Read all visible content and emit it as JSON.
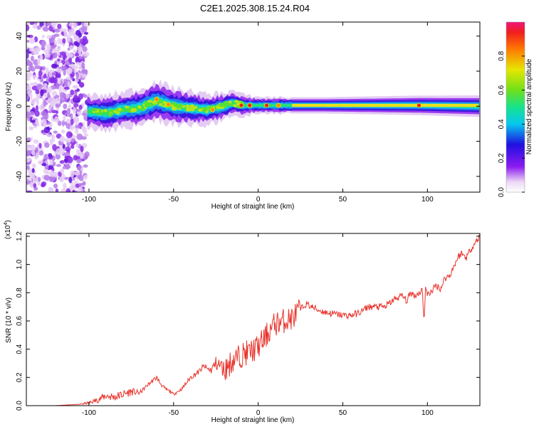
{
  "page": {
    "title": "C2E1.2025.308.15.24.R04"
  },
  "chart_data": [
    {
      "type": "heatmap",
      "xlabel": "Height of straight line (km)",
      "ylabel": "Frequency (Hz)",
      "xlim": [
        -137,
        131
      ],
      "ylim": [
        -49,
        48
      ],
      "xticks": [
        -100,
        -50,
        0,
        50,
        100
      ],
      "yticks": [
        -40,
        -20,
        0,
        20,
        40
      ],
      "noise_region_x": [
        -137,
        -101
      ],
      "band_center_profile": [
        [
          -100,
          -3
        ],
        [
          -90,
          -4
        ],
        [
          -80,
          -2
        ],
        [
          -70,
          -1
        ],
        [
          -60,
          3
        ],
        [
          -50,
          0
        ],
        [
          -40,
          -1
        ],
        [
          -30,
          -2
        ],
        [
          -20,
          0
        ],
        [
          -15,
          2
        ],
        [
          -10,
          0.5
        ],
        [
          0,
          0.5
        ],
        [
          20,
          0.5
        ],
        [
          60,
          0.5
        ],
        [
          95,
          0.5
        ],
        [
          131,
          0
        ]
      ],
      "band_halfwidth_profile": [
        [
          -100,
          6
        ],
        [
          -60,
          7
        ],
        [
          -20,
          5
        ],
        [
          0,
          3
        ],
        [
          40,
          3
        ],
        [
          131,
          4
        ]
      ],
      "peaks": [
        [
          -60,
          4,
          0.9
        ],
        [
          -53,
          1,
          0.85
        ],
        [
          -27,
          -2,
          0.8
        ],
        [
          -10,
          0.5,
          0.95
        ],
        [
          -5,
          0.5,
          0.95
        ],
        [
          5,
          0.5,
          0.95
        ],
        [
          12,
          0.5,
          0.9
        ],
        [
          95,
          0.5,
          1.0
        ]
      ],
      "colorbar": {
        "label": "Normalized spectral amplitude",
        "range": [
          0.0,
          1.0
        ],
        "ticks": [
          "0.0",
          "0.2",
          "0.4",
          "0.6",
          "0.8"
        ]
      },
      "grid": false
    },
    {
      "type": "line",
      "xlabel": "Height of straight line (km)",
      "ylabel": "SNR (10 * v/v)",
      "yscale_label": "(x10",
      "yscale_exp": "4",
      "xlim": [
        -137,
        131
      ],
      "ylim": [
        0,
        1.22
      ],
      "xticks": [
        -100,
        -50,
        0,
        50,
        100
      ],
      "yticks": [
        "0.0",
        "0.2",
        "0.4",
        "0.6",
        "0.8",
        "1.0",
        "1.2"
      ],
      "series": [
        {
          "color": "#e8332b",
          "x": [
            -137,
            -120,
            -105,
            -100,
            -95,
            -90,
            -85,
            -80,
            -75,
            -70,
            -65,
            -62,
            -60,
            -58,
            -55,
            -52,
            -50,
            -45,
            -40,
            -35,
            -32,
            -30,
            -28,
            -25,
            -22,
            -20,
            -18,
            -15,
            -12,
            -10,
            -8,
            -5,
            -2,
            0,
            3,
            5,
            8,
            10,
            15,
            20,
            25,
            28,
            30,
            35,
            40,
            45,
            50,
            55,
            60,
            65,
            70,
            75,
            80,
            85,
            88,
            90,
            93,
            95,
            97,
            98,
            99,
            100,
            103,
            105,
            108,
            110,
            113,
            115,
            118,
            120,
            123,
            125,
            128,
            131
          ],
          "y": [
            0.0,
            0.0,
            0.01,
            0.02,
            0.04,
            0.07,
            0.06,
            0.08,
            0.1,
            0.09,
            0.15,
            0.18,
            0.2,
            0.16,
            0.12,
            0.1,
            0.08,
            0.12,
            0.2,
            0.24,
            0.28,
            0.26,
            0.25,
            0.3,
            0.28,
            0.25,
            0.28,
            0.32,
            0.34,
            0.36,
            0.37,
            0.38,
            0.4,
            0.42,
            0.46,
            0.5,
            0.55,
            0.58,
            0.6,
            0.62,
            0.68,
            0.72,
            0.71,
            0.68,
            0.66,
            0.65,
            0.64,
            0.64,
            0.66,
            0.7,
            0.7,
            0.7,
            0.75,
            0.78,
            0.74,
            0.8,
            0.78,
            0.8,
            0.82,
            0.6,
            0.85,
            0.78,
            0.82,
            0.85,
            0.83,
            0.9,
            0.92,
            0.97,
            1.05,
            1.08,
            1.05,
            1.1,
            1.15,
            1.2
          ]
        }
      ],
      "grid": false
    }
  ]
}
